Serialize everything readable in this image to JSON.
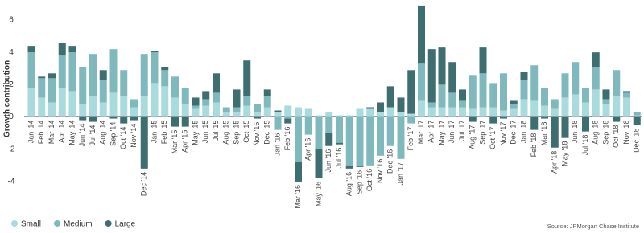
{
  "chart_data": {
    "type": "bar",
    "stacked": true,
    "y_label": "Growth contribution",
    "source": "Source: JPMorgan Chase Institute",
    "categories": [
      "Jan '14",
      "Feb '14",
      "Mar '14",
      "Apr '14",
      "May '14",
      "Jun '14",
      "Jul '14",
      "Aug '14",
      "Sep '14",
      "Oct '14",
      "Nov '14",
      "Dec '14",
      "Jan '15",
      "Feb '15",
      "Mar '15",
      "Apr '15",
      "May '15",
      "Jun '15",
      "Jul '15",
      "Aug '15",
      "Sep '15",
      "Oct '15",
      "Nov '15",
      "Dec '15",
      "Jan '16",
      "Feb '16",
      "Mar '16",
      "Apr '16",
      "May '16",
      "Jun '16",
      "Jul '16",
      "Aug '16",
      "Sep '16",
      "Oct '16",
      "Nov '16",
      "Dec '16",
      "Jan '17",
      "Feb '17",
      "Mar '17",
      "Apr '17",
      "May '17",
      "Jun '17",
      "Jul '17",
      "Aug '17",
      "Sep '17",
      "Oct '17",
      "Nov '17",
      "Dec '17",
      "Jan '18",
      "Feb '18",
      "Mar '18",
      "Apr '18",
      "May '18",
      "Jun '18",
      "Jul '18",
      "Aug '18",
      "Sep '18",
      "Oct '18",
      "Nov '18",
      "Dec '18"
    ],
    "series": [
      {
        "name": "Small",
        "color": "#a9dbde",
        "values": [
          1.8,
          1.2,
          0.9,
          1.8,
          1.6,
          0.8,
          1.3,
          0.9,
          1.5,
          1.3,
          0.6,
          1.3,
          2.1,
          1.9,
          1.2,
          0.8,
          0.5,
          0.7,
          0.9,
          0.3,
          0.3,
          0.7,
          0.3,
          0.6,
          0.3,
          0.7,
          0.6,
          0.5,
          0.1,
          0.3,
          0.1,
          0.1,
          0.5,
          0.5,
          0.3,
          0.6,
          0.3,
          0.2,
          1.0,
          0.6,
          0.6,
          0.6,
          0.6,
          0.5,
          0.6,
          0.6,
          0.4,
          0.5,
          1.1,
          1.0,
          0.7,
          0.5,
          1.2,
          1.4,
          0.9,
          1.7,
          0.8,
          1.3,
          1.2,
          0.1
        ]
      },
      {
        "name": "Medium",
        "color": "#80b9bd",
        "values": [
          2.2,
          1.2,
          1.5,
          2.0,
          2.4,
          2.3,
          2.6,
          1.4,
          2.7,
          1.6,
          0.5,
          2.6,
          1.9,
          1.0,
          1.3,
          1.0,
          0.2,
          0.4,
          0.6,
          0.3,
          0.3,
          0.6,
          0.5,
          0.7,
          -0.8,
          -0.1,
          -2.8,
          -1.1,
          -2.0,
          -1.0,
          -1.6,
          -3.0,
          -3.0,
          -3.0,
          -2.4,
          -1.8,
          -2.6,
          -0.4,
          2.3,
          0.3,
          1.4,
          0.9,
          0.4,
          2.1,
          2.1,
          1.5,
          2.3,
          0.3,
          1.2,
          2.2,
          1.1,
          0.6,
          1.5,
          2.0,
          0.9,
          1.4,
          0.3,
          1.6,
          0.3,
          0.2
        ]
      },
      {
        "name": "Large",
        "color": "#3f6e70",
        "values": [
          0.4,
          0.1,
          0.3,
          0.8,
          0.4,
          -0.2,
          -0.3,
          0.6,
          -0.1,
          -0.4,
          -0.2,
          -3.2,
          0.1,
          0.2,
          -0.6,
          -0.6,
          0.5,
          0.5,
          1.2,
          0.0,
          1.1,
          2.2,
          -0.1,
          0.4,
          0.1,
          -0.3,
          -1.2,
          0.0,
          -1.8,
          -0.8,
          -0.1,
          -0.2,
          -0.1,
          0.1,
          0.6,
          1.3,
          0.9,
          2.7,
          3.6,
          3.3,
          2.3,
          1.9,
          0.7,
          -0.3,
          1.6,
          -0.4,
          -0.1,
          0.2,
          0.5,
          -0.8,
          -0.1,
          -1.9,
          -1.3,
          0.0,
          -0.9,
          0.9,
          0.6,
          -0.3,
          0.1,
          -0.5
        ]
      }
    ],
    "ylim": [
      -4.7,
      6.9
    ],
    "yticks": [
      -4,
      -2,
      0,
      2,
      4,
      6
    ],
    "grid": false,
    "legend": "bottom-left"
  }
}
